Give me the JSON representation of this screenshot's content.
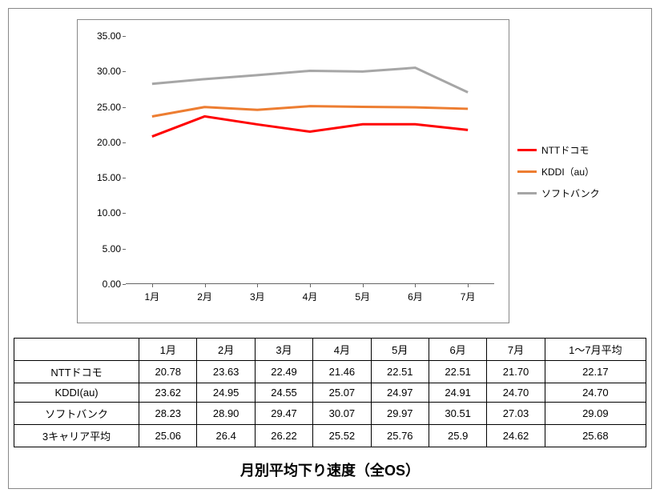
{
  "title": "月別平均下り速度（全OS）",
  "chart": {
    "type": "line",
    "background_color": "#ffffff",
    "border_color": "#888888",
    "ylim": [
      0,
      35
    ],
    "ytick_step": 5,
    "ylabels": [
      "0.00",
      "5.00",
      "10.00",
      "15.00",
      "20.00",
      "25.00",
      "30.00",
      "35.00"
    ],
    "categories": [
      "1月",
      "2月",
      "3月",
      "4月",
      "5月",
      "6月",
      "7月"
    ],
    "grid_color": "#666666",
    "tick_fontsize": 12,
    "series": [
      {
        "name": "NTTドコモ",
        "color": "#ff0000",
        "width": 3,
        "values": [
          20.78,
          23.63,
          22.49,
          21.46,
          22.51,
          22.51,
          21.7
        ]
      },
      {
        "name": "KDDI（au）",
        "color": "#ed7d31",
        "width": 3,
        "values": [
          23.62,
          24.95,
          24.55,
          25.07,
          24.97,
          24.91,
          24.7
        ]
      },
      {
        "name": "ソフトバンク",
        "color": "#a6a6a6",
        "width": 3,
        "values": [
          28.23,
          28.9,
          29.47,
          30.07,
          29.97,
          30.51,
          27.03
        ]
      }
    ]
  },
  "table": {
    "columns": [
      "",
      "1月",
      "2月",
      "3月",
      "4月",
      "5月",
      "6月",
      "7月",
      "1～7月平均"
    ],
    "rows": [
      [
        "NTTドコモ",
        "20.78",
        "23.63",
        "22.49",
        "21.46",
        "22.51",
        "22.51",
        "21.70",
        "22.17"
      ],
      [
        "KDDI(au)",
        "23.62",
        "24.95",
        "24.55",
        "25.07",
        "24.97",
        "24.91",
        "24.70",
        "24.70"
      ],
      [
        "ソフトバンク",
        "28.23",
        "28.90",
        "29.47",
        "30.07",
        "29.97",
        "30.51",
        "27.03",
        "29.09"
      ],
      [
        "3キャリア平均",
        "25.06",
        "26.4",
        "26.22",
        "25.52",
        "25.76",
        "25.9",
        "24.62",
        "25.68"
      ]
    ],
    "header_fontsize": 13,
    "cell_fontsize": 13,
    "border_color": "#000000"
  }
}
